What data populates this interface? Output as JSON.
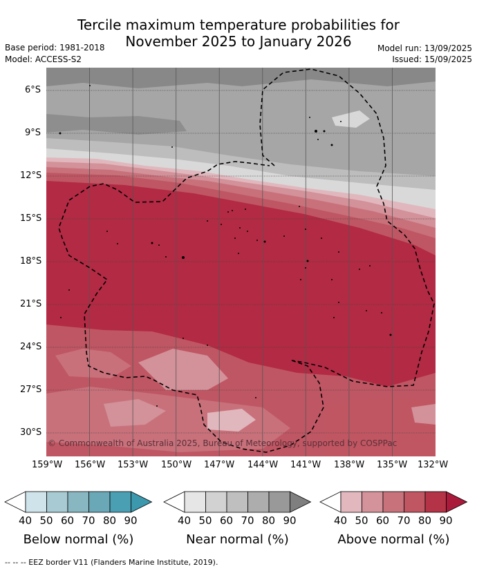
{
  "title_line1": "Tercile maximum temperature probabilities for",
  "title_line2": "November 2025 to January 2026",
  "base_period": "Base period: 1981-2018",
  "model": "Model: ACCESS-S2",
  "model_run": "Model run: 13/09/2025",
  "issued": "Issued: 15/09/2025",
  "lat_labels": [
    "6°S",
    "9°S",
    "12°S",
    "15°S",
    "18°S",
    "21°S",
    "24°S",
    "27°S",
    "30°S"
  ],
  "lon_labels": [
    "159°W",
    "156°W",
    "153°W",
    "150°W",
    "147°W",
    "144°W",
    "141°W",
    "138°W",
    "135°W",
    "132°W"
  ],
  "copyright": "© Commonwealth of Australia 2025, Bureau of Meteorology, supported by COSPPac",
  "colorbars": [
    {
      "label": "Below normal (%)",
      "ticks": [
        "40",
        "50",
        "60",
        "70",
        "80",
        "90"
      ],
      "colors": [
        "#ffffff",
        "#cfe3ea",
        "#a8cad3",
        "#88b7c2",
        "#6aa8b8",
        "#4a9fb3",
        "#3b98ad"
      ]
    },
    {
      "label": "Near normal (%)",
      "ticks": [
        "40",
        "50",
        "60",
        "70",
        "80",
        "90"
      ],
      "colors": [
        "#ffffff",
        "#e6e6e6",
        "#d2d2d2",
        "#bfbfbf",
        "#adadad",
        "#999999",
        "#7f7f7f"
      ]
    },
    {
      "label": "Above normal (%)",
      "ticks": [
        "40",
        "50",
        "60",
        "70",
        "80",
        "90"
      ],
      "colors": [
        "#ffffff",
        "#e2b8be",
        "#d4939b",
        "#c8737c",
        "#c05662",
        "#b43346",
        "#aa1a3a"
      ]
    }
  ],
  "footer": "-- -- -- EEZ border V11 (Flanders Marine Institute, 2019)."
}
